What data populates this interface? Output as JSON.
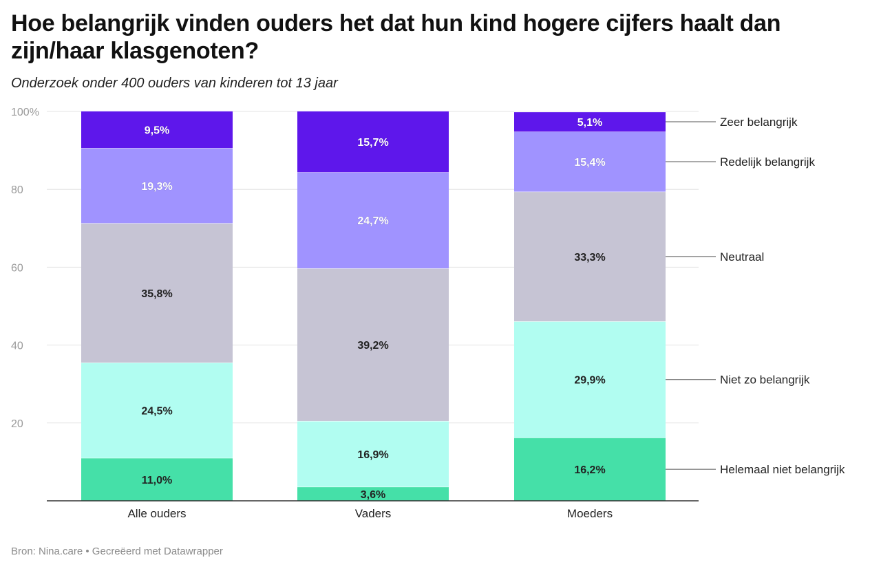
{
  "title": "Hoe belangrijk vinden ouders het dat hun kind hogere cijfers haalt dan zijn/haar klasgenoten?",
  "subtitle": "Onderzoek onder 400 ouders van kinderen tot 13 jaar",
  "source": "Bron: Nina.care • Gecreëerd met Datawrapper",
  "colors": {
    "Helemaal niet belangrijk": "#45e0a8",
    "Niet zo belangrijk": "#b1fdf1",
    "Neutraal": "#c6c4d4",
    "Redelijk belangrijk": "#a093ff",
    "Zeer belangrijk": "#5e17eb"
  },
  "chart_data": {
    "type": "bar",
    "stacked": true,
    "categories": [
      "Alle ouders",
      "Vaders",
      "Moeders"
    ],
    "series": [
      {
        "name": "Helemaal niet belangrijk",
        "values": [
          11.0,
          3.6,
          16.2
        ],
        "labels": [
          "11,0%",
          "3,6%",
          "16,2%"
        ]
      },
      {
        "name": "Niet zo belangrijk",
        "values": [
          24.5,
          16.9,
          29.9
        ],
        "labels": [
          "24,5%",
          "16,9%",
          "29,9%"
        ]
      },
      {
        "name": "Neutraal",
        "values": [
          35.8,
          39.2,
          33.3
        ],
        "labels": [
          "35,8%",
          "39,2%",
          "33,3%"
        ]
      },
      {
        "name": "Redelijk belangrijk",
        "values": [
          19.3,
          24.7,
          15.4
        ],
        "labels": [
          "19,3%",
          "24,7%",
          "15,4%"
        ]
      },
      {
        "name": "Zeer belangrijk",
        "values": [
          9.5,
          15.7,
          5.1
        ],
        "labels": [
          "9,5%",
          "15,7%",
          "5,1%"
        ]
      }
    ],
    "yticks": [
      20,
      40,
      60,
      80,
      100
    ],
    "ytick_labels": [
      "20",
      "40",
      "60",
      "80",
      "100%"
    ],
    "ylim": [
      0,
      100
    ],
    "grid": true,
    "legend_position": "right, labels next to last bar"
  }
}
